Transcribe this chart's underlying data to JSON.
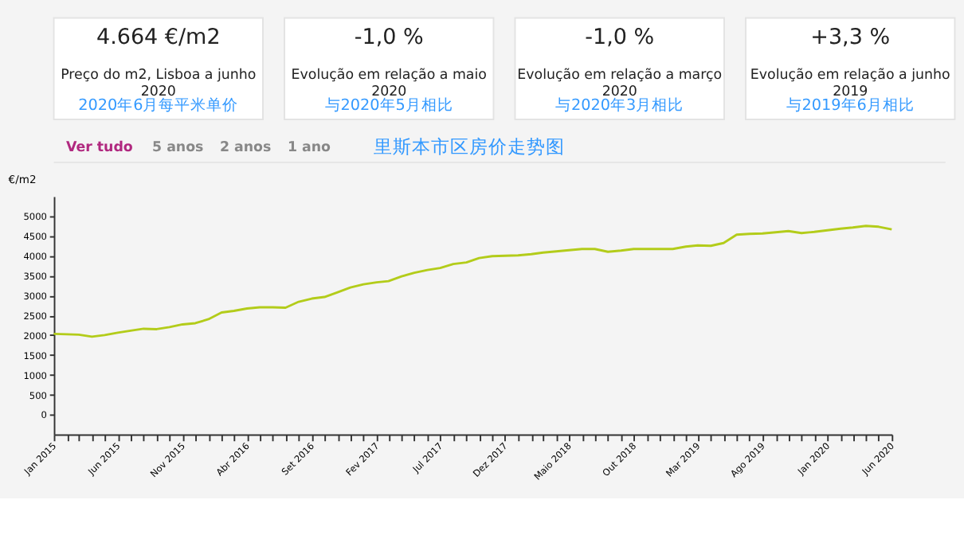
{
  "chart_data": {
    "type": "line",
    "title": "里斯本市区房价走势图",
    "ylabel": "€/m2",
    "annotations": [
      "4.664 €/m2",
      "Preço do m2, Lisboa a junho 2020",
      "2020年6月每平米单价",
      "-1,0 %",
      "Evolução em relação a maio 2020",
      "与2020年5月相比",
      "-1,0 %",
      "Evolução em relação a março 2020",
      "与2020年3月相比",
      "+3,3 %",
      "Evolução em relação a junho 2019",
      "与2019年6月相比",
      "Ver tudo",
      "5 anos",
      "2 anos",
      "1 ano"
    ],
    "x": [
      "2015-01",
      "2015-02",
      "2015-03",
      "2015-04",
      "2015-05",
      "2015-06",
      "2015-07",
      "2015-08",
      "2015-09",
      "2015-10",
      "2015-11",
      "2015-12",
      "2016-01",
      "2016-02",
      "2016-03",
      "2016-04",
      "2016-05",
      "2016-06",
      "2016-07",
      "2016-08",
      "2016-09",
      "2016-10",
      "2016-11",
      "2016-12",
      "2017-01",
      "2017-02",
      "2017-03",
      "2017-04",
      "2017-05",
      "2017-06",
      "2017-07",
      "2017-08",
      "2017-09",
      "2017-10",
      "2017-11",
      "2017-12",
      "2018-01",
      "2018-02",
      "2018-03",
      "2018-04",
      "2018-05",
      "2018-06",
      "2018-07",
      "2018-08",
      "2018-09",
      "2018-10",
      "2018-11",
      "2018-12",
      "2019-01",
      "2019-02",
      "2019-03",
      "2019-04",
      "2019-05",
      "2019-06",
      "2019-07",
      "2019-08",
      "2019-09",
      "2019-10",
      "2019-11",
      "2019-12",
      "2020-01",
      "2020-02",
      "2020-03",
      "2020-04",
      "2020-05",
      "2020-06"
    ],
    "series": [
      {
        "color": "#b3cc1a",
        "values": [
          2030,
          2020,
          2010,
          1960,
          2000,
          2060,
          2110,
          2160,
          2150,
          2200,
          2270,
          2300,
          2400,
          2570,
          2610,
          2670,
          2700,
          2700,
          2690,
          2840,
          2920,
          2960,
          3080,
          3200,
          3280,
          3330,
          3360,
          3480,
          3570,
          3640,
          3690,
          3790,
          3830,
          3940,
          3990,
          4000,
          4010,
          4040,
          4080,
          4110,
          4140,
          4170,
          4170,
          4100,
          4130,
          4170,
          4170,
          4170,
          4170,
          4230,
          4260,
          4250,
          4320,
          4530,
          4550,
          4560,
          4590,
          4620,
          4570,
          4600,
          4640,
          4680,
          4710,
          4750,
          4730,
          4664
        ]
      }
    ],
    "ylim": [
      -500,
      5500
    ],
    "yticks": [
      0,
      500,
      1000,
      1500,
      2000,
      2500,
      3000,
      3500,
      4000,
      4500,
      5000
    ],
    "xlim": [
      "2015-01",
      "2020-06"
    ],
    "xticks": [
      {
        "value": "2015-01",
        "label": "Jan 2015"
      },
      {
        "value": "2015-02",
        "label": null
      },
      {
        "value": "2015-03",
        "label": null
      },
      {
        "value": "2015-04",
        "label": null
      },
      {
        "value": "2015-05",
        "label": null
      },
      {
        "value": "2015-06",
        "label": "Jun 2015"
      },
      {
        "value": "2015-07",
        "label": null
      },
      {
        "value": "2015-08",
        "label": null
      },
      {
        "value": "2015-09",
        "label": null
      },
      {
        "value": "2015-10",
        "label": null
      },
      {
        "value": "2015-11",
        "label": "Nov 2015"
      },
      {
        "value": "2015-12",
        "label": null
      },
      {
        "value": "2016-01",
        "label": null
      },
      {
        "value": "2016-02",
        "label": null
      },
      {
        "value": "2016-03",
        "label": null
      },
      {
        "value": "2016-04",
        "label": "Abr 2016"
      },
      {
        "value": "2016-05",
        "label": null
      },
      {
        "value": "2016-06",
        "label": null
      },
      {
        "value": "2016-07",
        "label": null
      },
      {
        "value": "2016-08",
        "label": null
      },
      {
        "value": "2016-09",
        "label": "Set 2016"
      },
      {
        "value": "2016-10",
        "label": null
      },
      {
        "value": "2016-11",
        "label": null
      },
      {
        "value": "2016-12",
        "label": null
      },
      {
        "value": "2017-01",
        "label": null
      },
      {
        "value": "2017-02",
        "label": "Fev 2017"
      },
      {
        "value": "2017-03",
        "label": null
      },
      {
        "value": "2017-04",
        "label": null
      },
      {
        "value": "2017-05",
        "label": null
      },
      {
        "value": "2017-06",
        "label": null
      },
      {
        "value": "2017-07",
        "label": "Jul 2017"
      },
      {
        "value": "2017-08",
        "label": null
      },
      {
        "value": "2017-09",
        "label": null
      },
      {
        "value": "2017-10",
        "label": null
      },
      {
        "value": "2017-11",
        "label": null
      },
      {
        "value": "2017-12",
        "label": "Dez 2017"
      },
      {
        "value": "2018-01",
        "label": null
      },
      {
        "value": "2018-02",
        "label": null
      },
      {
        "value": "2018-03",
        "label": null
      },
      {
        "value": "2018-04",
        "label": null
      },
      {
        "value": "2018-05",
        "label": "Maio 2018"
      },
      {
        "value": "2018-06",
        "label": null
      },
      {
        "value": "2018-07",
        "label": null
      },
      {
        "value": "2018-08",
        "label": null
      },
      {
        "value": "2018-09",
        "label": null
      },
      {
        "value": "2018-10",
        "label": "Out 2018"
      },
      {
        "value": "2018-11",
        "label": null
      },
      {
        "value": "2018-12",
        "label": null
      },
      {
        "value": "2019-01",
        "label": null
      },
      {
        "value": "2019-02",
        "label": null
      },
      {
        "value": "2019-03",
        "label": "Mar 2019"
      },
      {
        "value": "2019-04",
        "label": null
      },
      {
        "value": "2019-05",
        "label": null
      },
      {
        "value": "2019-06",
        "label": null
      },
      {
        "value": "2019-07",
        "label": null
      },
      {
        "value": "2019-08",
        "label": "Ago 2019"
      },
      {
        "value": "2019-09",
        "label": null
      },
      {
        "value": "2019-10",
        "label": null
      },
      {
        "value": "2019-11",
        "label": null
      },
      {
        "value": "2019-12",
        "label": null
      },
      {
        "value": "2020-01",
        "label": "Jan 2020"
      },
      {
        "value": "2020-02",
        "label": null
      },
      {
        "value": "2020-03",
        "label": null
      },
      {
        "value": "2020-04",
        "label": null
      },
      {
        "value": "2020-05",
        "label": null
      },
      {
        "value": "2020-06",
        "label": "Jun 2020"
      }
    ],
    "grid": false,
    "marker": "none",
    "line_style": "solid"
  }
}
